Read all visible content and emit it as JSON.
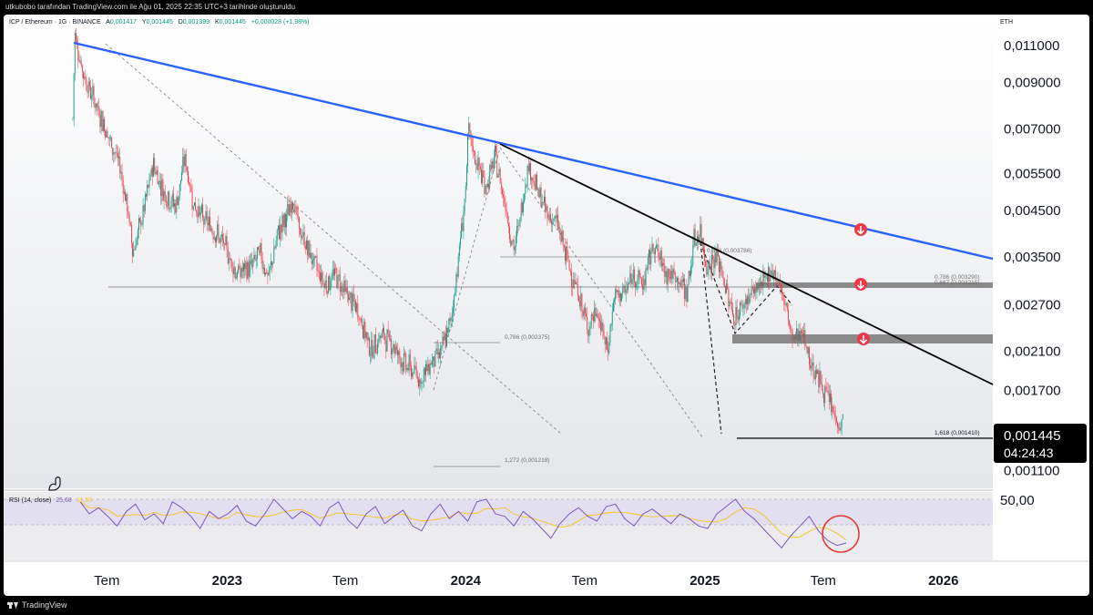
{
  "caption": "utkubobo tarafından TradingView.com ile Ağu 01, 2025 22:35 UTC+3 tarihinde oluşturuldu",
  "branding": "TradingView",
  "header": {
    "symbol": "ICP / Ethereum · 1G · BINANCE",
    "o_label": "A",
    "o_value": "0,001417",
    "h_label": "Y",
    "h_value": "0,001445",
    "l_label": "D",
    "l_value": "0,001399",
    "c_label": "K",
    "c_value": "0,001445",
    "change": "+0,000028 (+1,98%)"
  },
  "currency": "ETH",
  "price_badge": {
    "price": "0,001445",
    "countdown": "04:24:43"
  },
  "rsi": {
    "label": "RSI (14, close)",
    "value1": "25,68",
    "value2": "31,55"
  },
  "colors": {
    "up": "#089981",
    "down": "#f23645",
    "trendline": "#2962ff",
    "rsi": "#7e57c2",
    "rsi_ma": "#f7c525",
    "marker": "#f23645"
  },
  "chart_data": {
    "type": "candlestick",
    "y_axis": {
      "scale": "log",
      "range": [
        0.00105,
        0.0125
      ],
      "tick_labels": [
        "0,011000",
        "0,009000",
        "0,007000",
        "0,005500",
        "0,004500",
        "0,003500",
        "0,002700",
        "0,002100",
        "0,001700",
        "0,001100"
      ],
      "ticks": [
        0.011,
        0.009,
        0.007,
        0.0055,
        0.0045,
        0.0035,
        0.0027,
        0.0021,
        0.0017,
        0.0011
      ]
    },
    "x_axis": {
      "tick_labels": [
        "Tem",
        "2023",
        "Tem",
        "2024",
        "Tem",
        "2025",
        "Tem",
        "2026"
      ],
      "ticks": [
        "2022-07",
        "2023-01",
        "2023-07",
        "2024-01",
        "2024-07",
        "2025-01",
        "2025-07",
        "2026-01"
      ]
    },
    "series_path": [
      [
        "2022-05-10",
        0.0074
      ],
      [
        "2022-05-13",
        0.0118
      ],
      [
        "2022-05-25",
        0.0095
      ],
      [
        "2022-06-20",
        0.0076
      ],
      [
        "2022-07-05",
        0.0066
      ],
      [
        "2022-07-20",
        0.0058
      ],
      [
        "2022-08-01",
        0.0046
      ],
      [
        "2022-08-10",
        0.0036
      ],
      [
        "2022-08-25",
        0.0044
      ],
      [
        "2022-09-10",
        0.0058
      ],
      [
        "2022-09-25",
        0.005
      ],
      [
        "2022-10-15",
        0.0046
      ],
      [
        "2022-10-28",
        0.006
      ],
      [
        "2022-11-10",
        0.0047
      ],
      [
        "2022-11-25",
        0.0043
      ],
      [
        "2022-12-15",
        0.004
      ],
      [
        "2023-01-01",
        0.0036
      ],
      [
        "2023-01-15",
        0.0032
      ],
      [
        "2023-02-05",
        0.0033
      ],
      [
        "2023-02-20",
        0.0036
      ],
      [
        "2023-03-05",
        0.0031
      ],
      [
        "2023-03-20",
        0.004
      ],
      [
        "2023-04-01",
        0.0043
      ],
      [
        "2023-04-12",
        0.0048
      ],
      [
        "2023-04-22",
        0.004
      ],
      [
        "2023-05-10",
        0.0035
      ],
      [
        "2023-06-01",
        0.003
      ],
      [
        "2023-06-15",
        0.0032
      ],
      [
        "2023-07-01",
        0.0029
      ],
      [
        "2023-07-20",
        0.0026
      ],
      [
        "2023-08-10",
        0.0021
      ],
      [
        "2023-08-25",
        0.0023
      ],
      [
        "2023-09-10",
        0.0022
      ],
      [
        "2023-09-25",
        0.002
      ],
      [
        "2023-10-10",
        0.0019
      ],
      [
        "2023-10-25",
        0.0018
      ],
      [
        "2023-11-10",
        0.002
      ],
      [
        "2023-11-25",
        0.0021
      ],
      [
        "2023-12-10",
        0.0025
      ],
      [
        "2023-12-20",
        0.0034
      ],
      [
        "2024-01-01",
        0.005
      ],
      [
        "2024-01-05",
        0.0069
      ],
      [
        "2024-01-15",
        0.006
      ],
      [
        "2024-02-01",
        0.0051
      ],
      [
        "2024-02-15",
        0.006
      ],
      [
        "2024-03-01",
        0.0047
      ],
      [
        "2024-03-15",
        0.0036
      ],
      [
        "2024-03-28",
        0.0047
      ],
      [
        "2024-04-05",
        0.0058
      ],
      [
        "2024-04-20",
        0.005
      ],
      [
        "2024-05-05",
        0.0044
      ],
      [
        "2024-05-20",
        0.0042
      ],
      [
        "2024-06-05",
        0.0034
      ],
      [
        "2024-06-20",
        0.0029
      ],
      [
        "2024-07-05",
        0.0024
      ],
      [
        "2024-07-20",
        0.0026
      ],
      [
        "2024-08-05",
        0.0021
      ],
      [
        "2024-08-15",
        0.0028
      ],
      [
        "2024-09-01",
        0.0029
      ],
      [
        "2024-09-15",
        0.0032
      ],
      [
        "2024-09-28",
        0.003
      ],
      [
        "2024-10-15",
        0.0038
      ],
      [
        "2024-10-25",
        0.0034
      ],
      [
        "2024-11-05",
        0.0032
      ],
      [
        "2024-11-20",
        0.0031
      ],
      [
        "2024-12-05",
        0.0029
      ],
      [
        "2024-12-15",
        0.0038
      ],
      [
        "2024-12-25",
        0.004
      ],
      [
        "2025-01-05",
        0.0033
      ],
      [
        "2025-01-20",
        0.0035
      ],
      [
        "2025-02-01",
        0.003
      ],
      [
        "2025-02-15",
        0.0025
      ],
      [
        "2025-03-01",
        0.0027
      ],
      [
        "2025-03-15",
        0.0029
      ],
      [
        "2025-04-01",
        0.003
      ],
      [
        "2025-04-12",
        0.0033
      ],
      [
        "2025-04-25",
        0.003
      ],
      [
        "2025-05-05",
        0.0027
      ],
      [
        "2025-05-15",
        0.0022
      ],
      [
        "2025-05-28",
        0.0024
      ],
      [
        "2025-06-10",
        0.002
      ],
      [
        "2025-06-25",
        0.0018
      ],
      [
        "2025-07-10",
        0.0016
      ],
      [
        "2025-07-25",
        0.0014
      ],
      [
        "2025-08-01",
        0.001445
      ]
    ]
  },
  "annotations": {
    "fib_upper": "0,618 (0,003786)",
    "fib_786a": "0,786 (0,003290)",
    "fib_786b": "0,667 (0,003215)",
    "fib_786_mid": "0,786 (0,002375)",
    "fib_1618": "1,618 (0,001410)",
    "fib_1272": "1,272 (0,001218)"
  },
  "rsi_series": [
    60,
    50,
    55,
    48,
    40,
    52,
    58,
    45,
    50,
    42,
    60,
    55,
    48,
    38,
    52,
    46,
    50,
    57,
    44,
    40,
    50,
    62,
    54,
    46,
    52,
    48,
    40,
    55,
    60,
    45,
    38,
    50,
    56,
    42,
    48,
    53,
    40,
    36,
    50,
    58,
    46,
    52,
    44,
    60,
    62,
    50,
    48,
    40,
    52,
    46,
    38,
    30,
    42,
    50,
    55,
    48,
    44,
    56,
    58,
    46,
    40,
    50,
    54,
    48,
    42,
    50,
    46,
    40,
    38,
    50,
    56,
    62,
    52,
    46,
    38,
    30,
    22,
    32,
    40,
    48,
    36,
    28,
    24,
    26
  ]
}
